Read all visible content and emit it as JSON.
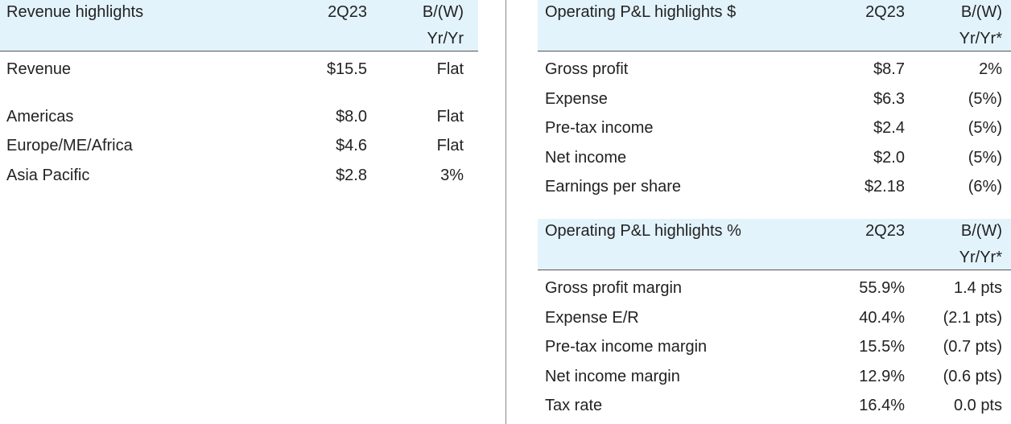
{
  "revenue_table": {
    "header": {
      "label": "Revenue highlights",
      "period": "2Q23",
      "comp_line1": "B/(W)",
      "comp_line2": "Yr/Yr"
    },
    "rows": [
      {
        "label": "Revenue",
        "value": "$15.5",
        "change": "Flat"
      },
      {
        "label": "Americas",
        "value": "$8.0",
        "change": "Flat"
      },
      {
        "label": "Europe/ME/Africa",
        "value": "$4.6",
        "change": "Flat"
      },
      {
        "label": "Asia Pacific",
        "value": "$2.8",
        "change": "3%"
      }
    ]
  },
  "pl_dollar_table": {
    "header": {
      "label": "Operating P&L highlights $",
      "period": "2Q23",
      "comp_line1": "B/(W)",
      "comp_line2": "Yr/Yr*"
    },
    "rows": [
      {
        "label": "Gross profit",
        "value": "$8.7",
        "change": "2%"
      },
      {
        "label": "Expense",
        "value": "$6.3",
        "change": "(5%)"
      },
      {
        "label": "Pre-tax income",
        "value": "$2.4",
        "change": "(5%)"
      },
      {
        "label": "Net income",
        "value": "$2.0",
        "change": "(5%)"
      },
      {
        "label": "Earnings per share",
        "value": "$2.18",
        "change": "(6%)"
      }
    ]
  },
  "pl_percent_table": {
    "header": {
      "label": "Operating P&L highlights %",
      "period": "2Q23",
      "comp_line1": "B/(W)",
      "comp_line2": "Yr/Yr*"
    },
    "rows": [
      {
        "label": "Gross profit margin",
        "value": "55.9%",
        "change": "1.4 pts"
      },
      {
        "label": "Expense E/R",
        "value": "40.4%",
        "change": "(2.1 pts)"
      },
      {
        "label": "Pre-tax income margin",
        "value": "15.5%",
        "change": "(0.7 pts)"
      },
      {
        "label": "Net income margin",
        "value": "12.9%",
        "change": "(0.6 pts)"
      },
      {
        "label": "Tax rate",
        "value": "16.4%",
        "change": "0.0 pts"
      }
    ]
  },
  "colors": {
    "header_bg": "#e3f3fc",
    "text": "#222222",
    "rule": "#555555"
  }
}
